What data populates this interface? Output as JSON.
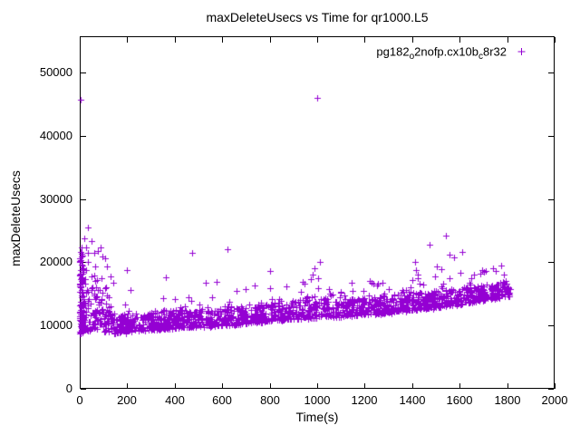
{
  "chart_data": {
    "type": "scatter",
    "title": "maxDeleteUsecs vs Time for qr1000.L5",
    "xlabel": "Time(s)",
    "ylabel": "maxDeleteUsecs",
    "xlim": [
      0,
      2000
    ],
    "ylim": [
      0,
      55730
    ],
    "xticks": [
      0,
      200,
      400,
      600,
      800,
      1000,
      1200,
      1400,
      1600,
      1800,
      2000
    ],
    "yticks": [
      0,
      10000,
      20000,
      30000,
      40000,
      50000
    ],
    "grid": "off",
    "legend_position": "inside-top-right",
    "series": [
      {
        "name": "pg182o2nofp.cx10bc8r32",
        "name_segments": [
          {
            "t": "pg182"
          },
          {
            "t": "o",
            "sub": true
          },
          {
            "t": "2nofp.cx10b"
          },
          {
            "t": "c",
            "sub": true
          },
          {
            "t": "8r32"
          }
        ],
        "marker": "+",
        "color": "#9400D3"
      }
    ],
    "scatter_model": {
      "x_end": 1813,
      "dense_band": {
        "count": 1700,
        "fringe_prob": 0.05,
        "fringe_extra": 2600,
        "control_points": [
          [
            0,
            8900,
            19500
          ],
          [
            15,
            9100,
            14500
          ],
          [
            60,
            9300,
            13800
          ],
          [
            100,
            9100,
            12800
          ],
          [
            150,
            8800,
            11800
          ],
          [
            220,
            9000,
            11800
          ],
          [
            300,
            9300,
            12100
          ],
          [
            400,
            9600,
            12400
          ],
          [
            500,
            9800,
            12700
          ],
          [
            600,
            10000,
            13000
          ],
          [
            700,
            10300,
            13200
          ],
          [
            800,
            10700,
            13500
          ],
          [
            900,
            11000,
            13800
          ],
          [
            980,
            11200,
            14600
          ],
          [
            1020,
            11300,
            14300
          ],
          [
            1100,
            11400,
            14100
          ],
          [
            1200,
            11700,
            14400
          ],
          [
            1300,
            12000,
            14700
          ],
          [
            1380,
            12400,
            15400
          ],
          [
            1450,
            12600,
            15300
          ],
          [
            1550,
            13100,
            15700
          ],
          [
            1650,
            13600,
            16100
          ],
          [
            1750,
            14300,
            16600
          ],
          [
            1813,
            14800,
            17000
          ]
        ]
      },
      "left_cluster": {
        "x_range": [
          0,
          14
        ],
        "y_min": 8800,
        "y_max": 22000,
        "count": 85,
        "skew": 1.7
      },
      "early_cluster": {
        "x_range": [
          18,
          135
        ],
        "y_min": 11200,
        "ceil_start": 23600,
        "ceil_end": 14500,
        "count": 50,
        "skew": 1.5
      },
      "outliers": [
        [
          2,
          45700
        ],
        [
          1000,
          46000
        ],
        [
          8,
          22300
        ],
        [
          20,
          23800
        ],
        [
          28,
          22400
        ],
        [
          35,
          25500
        ],
        [
          50,
          23300
        ],
        [
          62,
          21500
        ],
        [
          75,
          21800
        ],
        [
          88,
          22300
        ],
        [
          95,
          20900
        ],
        [
          105,
          20600
        ],
        [
          115,
          19300
        ],
        [
          128,
          17800
        ],
        [
          140,
          16800
        ],
        [
          200,
          18700
        ],
        [
          215,
          15600
        ],
        [
          363,
          17600
        ],
        [
          473,
          21500
        ],
        [
          531,
          16760
        ],
        [
          578,
          16900
        ],
        [
          622,
          22060
        ],
        [
          660,
          15500
        ],
        [
          700,
          15800
        ],
        [
          737,
          16300
        ],
        [
          801,
          18620
        ],
        [
          870,
          16200
        ],
        [
          939,
          16900
        ],
        [
          945,
          16660
        ],
        [
          973,
          17340
        ],
        [
          980,
          18000
        ],
        [
          990,
          19000
        ],
        [
          1005,
          17500
        ],
        [
          1012,
          20060
        ],
        [
          1050,
          15800
        ],
        [
          1100,
          15300
        ],
        [
          1150,
          15500
        ],
        [
          1221,
          17050
        ],
        [
          1300,
          15800
        ],
        [
          1360,
          15600
        ],
        [
          1412,
          20050
        ],
        [
          1416,
          18770
        ],
        [
          1424,
          18050
        ],
        [
          1424,
          17480
        ],
        [
          1445,
          16500
        ],
        [
          1473,
          22780
        ],
        [
          1504,
          19340
        ],
        [
          1523,
          18900
        ],
        [
          1542,
          24210
        ],
        [
          1557,
          21200
        ],
        [
          1576,
          20770
        ],
        [
          1611,
          21630
        ],
        [
          1640,
          16800
        ],
        [
          1687,
          18200
        ],
        [
          1695,
          18770
        ],
        [
          1702,
          18480
        ],
        [
          1710,
          18620
        ],
        [
          1775,
          19480
        ],
        [
          1786,
          18050
        ]
      ]
    }
  }
}
